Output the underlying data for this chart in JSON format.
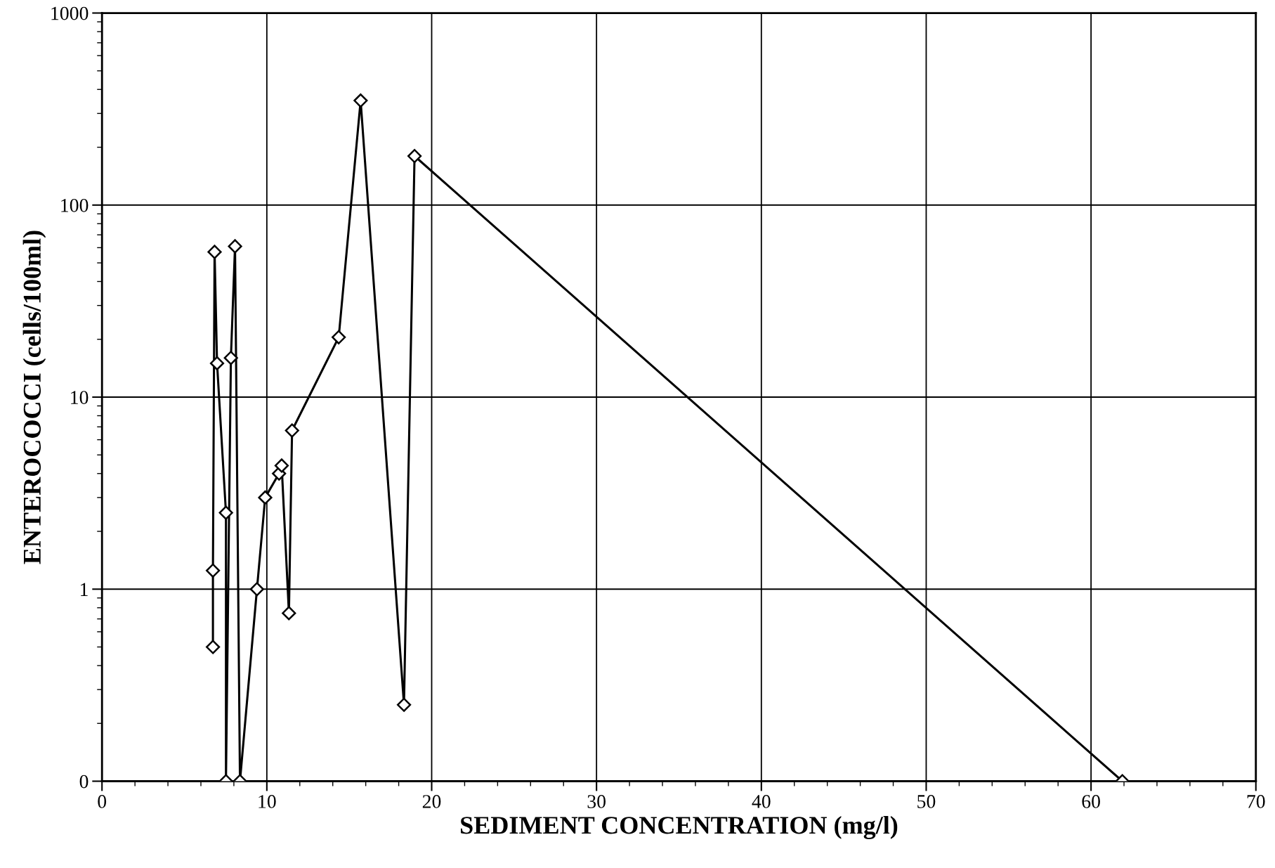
{
  "chart_data": {
    "type": "line",
    "xlabel": "SEDIMENT CONCENTRATION (mg/l)",
    "ylabel": "ENTEROCOCCI (cells/100ml)",
    "series": [
      {
        "color": "#000000",
        "x": [
          6.73,
          6.73,
          6.83,
          6.98,
          7.52,
          7.52,
          7.82,
          8.07,
          8.37,
          9.4,
          9.9,
          10.74,
          10.9,
          11.34,
          11.53,
          14.36,
          15.69,
          18.32,
          18.96,
          61.9
        ],
        "values": [
          0.5,
          1.25,
          57,
          15,
          2.5,
          0.1,
          16,
          61,
          0.1,
          1,
          3,
          4,
          4.4,
          0.75,
          6.7,
          20.5,
          350,
          0.25,
          180,
          0.1
        ]
      }
    ],
    "log": "y",
    "xlim": [
      0,
      70
    ],
    "xticks": [
      0,
      10,
      20,
      30,
      40,
      50,
      60,
      70
    ],
    "ylim": [
      0.1,
      1000
    ],
    "yticks": [
      {
        "value": 0.1,
        "label": "0"
      },
      1,
      10,
      100,
      1000
    ],
    "grid": true,
    "marker": "diamond",
    "line_style": "solid",
    "legend": false
  }
}
